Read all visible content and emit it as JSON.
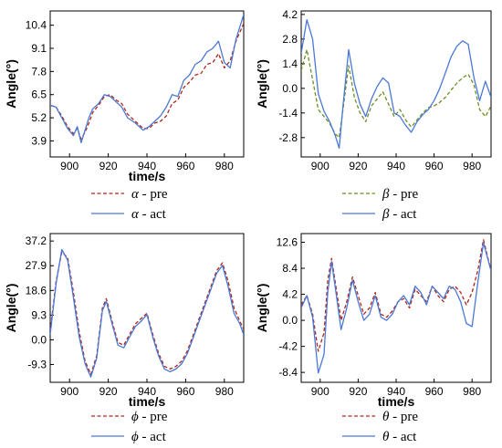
{
  "chart_data": [
    {
      "type": "line",
      "xlabel": "time/s",
      "ylabel": "Angle(°)",
      "xlim": [
        890,
        990
      ],
      "ylim": [
        3.0,
        11.2
      ],
      "xticks": [
        900,
        920,
        940,
        960,
        980
      ],
      "yticks": [
        3.9,
        5.2,
        6.5,
        7.8,
        9.1,
        10.4
      ],
      "ytick_labels": [
        "3.9",
        "5.2",
        "6.5",
        "7.8",
        "9.1",
        "10.4"
      ],
      "legend_position": "below",
      "series": [
        {
          "name": "α - pre",
          "symbol": "α",
          "suffix": " - pre",
          "color": "#b0281a",
          "style": "dashed",
          "x": [
            890,
            893,
            896,
            899,
            902,
            904,
            906,
            908,
            910,
            912,
            915,
            918,
            921,
            924,
            927,
            930,
            934,
            938,
            941,
            944,
            947,
            950,
            953,
            956,
            959,
            962,
            965,
            968,
            971,
            974,
            977,
            980,
            983,
            986,
            990
          ],
          "y": [
            5.9,
            5.8,
            5.3,
            4.7,
            4.3,
            4.6,
            4.0,
            4.4,
            4.9,
            5.5,
            5.9,
            6.4,
            6.5,
            6.2,
            6.0,
            5.4,
            5.0,
            4.6,
            4.6,
            4.9,
            5.0,
            5.3,
            6.0,
            6.2,
            6.9,
            7.2,
            7.6,
            7.7,
            8.2,
            8.3,
            8.8,
            8.0,
            8.4,
            9.5,
            10.5
          ]
        },
        {
          "name": "α - act",
          "symbol": "α",
          "suffix": " - act",
          "color": "#4a78d8",
          "style": "solid",
          "x": [
            890,
            893,
            896,
            899,
            902,
            904,
            906,
            908,
            910,
            912,
            915,
            918,
            921,
            924,
            927,
            930,
            934,
            938,
            941,
            944,
            947,
            950,
            953,
            956,
            959,
            962,
            965,
            968,
            971,
            974,
            977,
            980,
            983,
            986,
            990
          ],
          "y": [
            5.9,
            5.8,
            5.2,
            4.6,
            4.2,
            4.7,
            3.8,
            4.5,
            5.2,
            5.7,
            6.0,
            6.5,
            6.4,
            6.1,
            5.8,
            5.2,
            4.9,
            4.5,
            4.7,
            5.0,
            5.3,
            5.8,
            6.5,
            6.4,
            7.3,
            7.6,
            8.2,
            8.4,
            8.9,
            9.1,
            9.5,
            8.3,
            8.0,
            9.6,
            11.0
          ]
        }
      ]
    },
    {
      "type": "line",
      "xlabel": "",
      "ylabel": "Angle(°)",
      "xlim": [
        890,
        990
      ],
      "ylim": [
        -3.9,
        4.4
      ],
      "xticks": [
        900,
        920,
        940,
        960,
        980
      ],
      "yticks": [
        -2.8,
        -1.4,
        0.0,
        1.4,
        2.8,
        4.2
      ],
      "ytick_labels": [
        "-2.8",
        "-1.4",
        "0.0",
        "1.4",
        "2.8",
        "4.2"
      ],
      "legend_position": "below",
      "series": [
        {
          "name": "β - pre",
          "symbol": "β",
          "suffix": " - pre",
          "color": "#6b8e23",
          "style": "dashed",
          "x": [
            890,
            893,
            896,
            899,
            902,
            905,
            908,
            910,
            912,
            915,
            918,
            921,
            924,
            927,
            930,
            933,
            936,
            939,
            942,
            945,
            948,
            951,
            954,
            957,
            960,
            963,
            966,
            969,
            972,
            975,
            978,
            981,
            984,
            987,
            990
          ],
          "y": [
            1.0,
            2.2,
            0.5,
            -1.2,
            -1.6,
            -2.0,
            -2.6,
            -2.8,
            -1.2,
            1.3,
            -0.5,
            -1.4,
            -1.9,
            -1.0,
            -0.6,
            -0.2,
            -0.9,
            -1.6,
            -1.2,
            -1.8,
            -2.2,
            -1.8,
            -1.4,
            -1.1,
            -1.0,
            -0.8,
            -0.5,
            -0.1,
            0.3,
            0.6,
            0.8,
            0.2,
            -1.2,
            -1.6,
            -1.0
          ]
        },
        {
          "name": "β - act",
          "symbol": "β",
          "suffix": " - act",
          "color": "#4a78d8",
          "style": "solid",
          "x": [
            890,
            893,
            896,
            899,
            902,
            905,
            908,
            910,
            912,
            915,
            918,
            921,
            924,
            927,
            930,
            933,
            936,
            939,
            942,
            945,
            948,
            951,
            954,
            957,
            960,
            963,
            966,
            969,
            972,
            975,
            978,
            981,
            984,
            987,
            990
          ],
          "y": [
            2.0,
            3.9,
            2.8,
            -0.3,
            -1.3,
            -1.9,
            -2.7,
            -3.4,
            -1.0,
            2.2,
            0.3,
            -0.9,
            -1.6,
            -0.6,
            0.1,
            0.6,
            0.3,
            -1.4,
            -1.6,
            -2.1,
            -2.5,
            -1.9,
            -1.5,
            -1.2,
            -0.7,
            0.0,
            0.9,
            1.8,
            2.4,
            2.7,
            2.5,
            0.6,
            -0.7,
            0.4,
            -0.5
          ]
        }
      ]
    },
    {
      "type": "line",
      "xlabel": "time/s",
      "ylabel": "Angle(°)",
      "xlim": [
        890,
        990
      ],
      "ylim": [
        -16.0,
        40.0
      ],
      "xticks": [
        900,
        920,
        940,
        960,
        980
      ],
      "yticks": [
        -9.3,
        0.0,
        9.3,
        18.6,
        27.9,
        37.2
      ],
      "ytick_labels": [
        "-9.3",
        "0.0",
        "9.3",
        "18.6",
        "27.9",
        "37.2"
      ],
      "legend_position": "below",
      "series": [
        {
          "name": "ϕ - pre",
          "symbol": "ϕ",
          "suffix": " - pre",
          "color": "#b0281a",
          "style": "dashed",
          "x": [
            890,
            893,
            896,
            899,
            902,
            905,
            908,
            911,
            914,
            917,
            919,
            922,
            925,
            928,
            931,
            934,
            937,
            940,
            943,
            946,
            949,
            952,
            955,
            958,
            961,
            964,
            967,
            970,
            973,
            976,
            979,
            982,
            985,
            988,
            990
          ],
          "y": [
            3.0,
            22.0,
            33.0,
            31.0,
            18.0,
            3.0,
            -8.0,
            -13.0,
            -6.0,
            12.0,
            15.5,
            7.0,
            -1.0,
            -2.0,
            2.0,
            6.0,
            8.0,
            10.0,
            2.0,
            -5.0,
            -10.0,
            -11.0,
            -10.0,
            -8.0,
            -4.0,
            2.0,
            8.0,
            14.0,
            20.0,
            26.0,
            29.0,
            22.0,
            12.0,
            7.0,
            4.0
          ]
        },
        {
          "name": "ϕ - act",
          "symbol": "ϕ",
          "suffix": " - act",
          "color": "#4a78d8",
          "style": "solid",
          "x": [
            890,
            893,
            896,
            899,
            902,
            905,
            908,
            911,
            914,
            917,
            919,
            922,
            925,
            928,
            931,
            934,
            937,
            940,
            943,
            946,
            949,
            952,
            955,
            958,
            961,
            964,
            967,
            970,
            973,
            976,
            979,
            982,
            985,
            988,
            990
          ],
          "y": [
            2.0,
            21.0,
            34.0,
            30.0,
            16.0,
            1.0,
            -9.0,
            -14.0,
            -7.0,
            11.0,
            14.5,
            6.0,
            -2.0,
            -3.0,
            1.0,
            5.0,
            7.0,
            9.5,
            1.0,
            -6.0,
            -11.0,
            -12.0,
            -11.0,
            -9.0,
            -5.0,
            1.0,
            7.0,
            13.0,
            19.0,
            25.0,
            28.0,
            20.0,
            10.0,
            6.0,
            2.0
          ]
        }
      ]
    },
    {
      "type": "line",
      "xlabel": "time/s",
      "ylabel": "Angle(°)",
      "xlim": [
        890,
        990
      ],
      "ylim": [
        -10.0,
        14.0
      ],
      "xticks": [
        900,
        920,
        940,
        960,
        980
      ],
      "yticks": [
        -8.4,
        -4.2,
        0.0,
        4.2,
        8.4,
        12.6
      ],
      "ytick_labels": [
        "-8.4",
        "-4.2",
        "0.0",
        "4.2",
        "8.4",
        "12.6"
      ],
      "legend_position": "below",
      "series": [
        {
          "name": "θ - pre",
          "symbol": "θ",
          "suffix": " - pre",
          "color": "#b0281a",
          "style": "dashed",
          "x": [
            890,
            893,
            896,
            899,
            902,
            904,
            906,
            909,
            911,
            914,
            917,
            920,
            923,
            926,
            929,
            932,
            935,
            938,
            941,
            944,
            947,
            950,
            953,
            956,
            959,
            962,
            965,
            968,
            971,
            974,
            977,
            980,
            983,
            986,
            990
          ],
          "y": [
            2.5,
            4.0,
            1.0,
            -5.0,
            -2.0,
            6.5,
            10.0,
            4.0,
            0.0,
            3.0,
            7.0,
            4.0,
            1.0,
            2.0,
            4.5,
            1.0,
            0.5,
            1.5,
            3.0,
            3.5,
            2.0,
            5.0,
            4.0,
            3.0,
            5.5,
            4.0,
            3.0,
            5.0,
            5.5,
            4.5,
            2.5,
            4.5,
            8.0,
            13.0,
            8.0
          ]
        },
        {
          "name": "θ - act",
          "symbol": "θ",
          "suffix": " - act",
          "color": "#4a78d8",
          "style": "solid",
          "x": [
            890,
            893,
            896,
            899,
            902,
            904,
            906,
            909,
            911,
            914,
            917,
            920,
            923,
            926,
            929,
            932,
            935,
            938,
            941,
            944,
            947,
            950,
            953,
            956,
            959,
            962,
            965,
            968,
            971,
            974,
            977,
            980,
            983,
            986,
            990
          ],
          "y": [
            2.0,
            4.0,
            0.5,
            -8.5,
            -5.5,
            4.5,
            9.5,
            3.0,
            -1.5,
            2.0,
            6.5,
            3.0,
            0.0,
            1.0,
            4.0,
            0.5,
            0.0,
            1.0,
            3.0,
            4.0,
            2.5,
            5.5,
            4.5,
            2.5,
            5.5,
            4.5,
            3.5,
            5.5,
            5.0,
            3.0,
            -0.5,
            -1.0,
            6.0,
            12.5,
            8.0
          ]
        }
      ]
    }
  ]
}
